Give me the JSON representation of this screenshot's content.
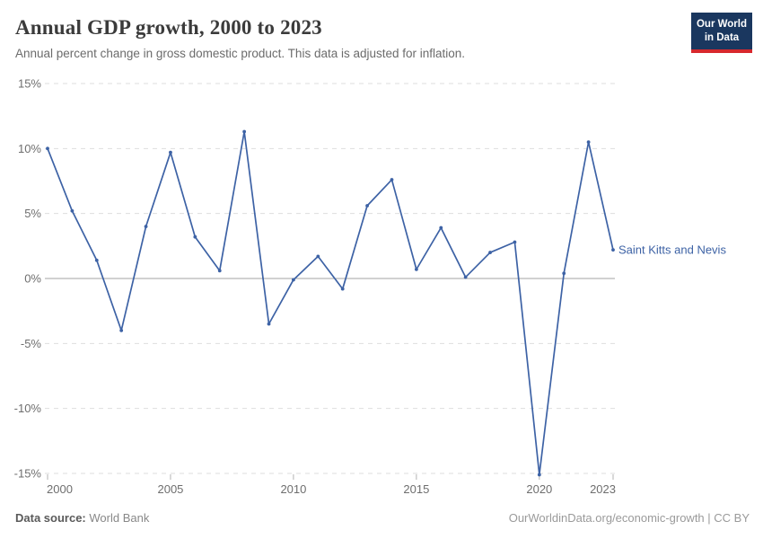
{
  "header": {
    "title": "Annual GDP growth, 2000 to 2023",
    "subtitle": "Annual percent change in gross domestic product. This data is adjusted for inflation."
  },
  "logo": {
    "line1": "Our World",
    "line2": "in Data"
  },
  "colors": {
    "line": "#3d62a5",
    "logo_bg": "#1a375f",
    "logo_accent": "#d7282d",
    "grid": "#dedede",
    "zero_line": "#a3a3a3",
    "axis_text": "#6e6e6e"
  },
  "chart_data": {
    "type": "line",
    "title": "Annual GDP growth, 2000 to 2023",
    "xlabel": "",
    "ylabel": "",
    "xlim": [
      2000,
      2023
    ],
    "ylim": [
      -15,
      15
    ],
    "grid": "horizontal-dashed",
    "legend_position": "end-of-line-label",
    "x": [
      2000,
      2001,
      2002,
      2003,
      2004,
      2005,
      2006,
      2007,
      2008,
      2009,
      2010,
      2011,
      2012,
      2013,
      2014,
      2015,
      2016,
      2017,
      2018,
      2019,
      2020,
      2021,
      2022,
      2023
    ],
    "series": [
      {
        "name": "Saint Kitts and Nevis",
        "values": [
          10.0,
          5.2,
          1.4,
          -4.0,
          4.0,
          9.7,
          3.2,
          0.6,
          11.3,
          -3.5,
          -0.1,
          1.7,
          -0.8,
          5.6,
          7.6,
          0.7,
          3.9,
          0.1,
          2.0,
          2.8,
          -15.1,
          0.4,
          10.5,
          2.2
        ]
      }
    ],
    "y_ticks": [
      {
        "value": 15,
        "label": "15%"
      },
      {
        "value": 10,
        "label": "10%"
      },
      {
        "value": 5,
        "label": "5%"
      },
      {
        "value": 0,
        "label": "0%"
      },
      {
        "value": -5,
        "label": "-5%"
      },
      {
        "value": -10,
        "label": "-10%"
      },
      {
        "value": -15,
        "label": "-15%"
      }
    ],
    "x_ticks": [
      {
        "value": 2000,
        "label": "2000"
      },
      {
        "value": 2005,
        "label": "2005"
      },
      {
        "value": 2010,
        "label": "2010"
      },
      {
        "value": 2015,
        "label": "2015"
      },
      {
        "value": 2020,
        "label": "2020"
      },
      {
        "value": 2023,
        "label": "2023"
      }
    ]
  },
  "footer": {
    "source_label": "Data source:",
    "source_value": "World Bank",
    "credit": "OurWorldinData.org/economic-growth | CC BY"
  }
}
